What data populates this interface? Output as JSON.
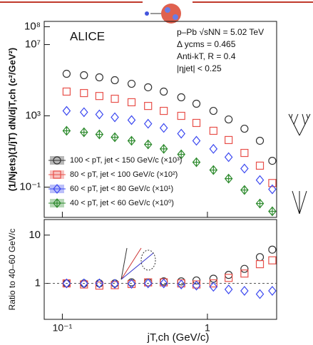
{
  "chart_data": [
    {
      "type": "scatter",
      "log_x": true,
      "log_y": true,
      "title": "ALICE",
      "annotations": [
        "p–Pb √sNN = 5.02 TeV",
        "Δ ycms = 0.465",
        "Anti-kT, R = 0.4",
        "|ηjet| < 0.25"
      ],
      "y_label": "(1/Njets)(1/jT) dN/djT,ch (c²/GeV²)",
      "x": [
        0.107,
        0.141,
        0.18,
        0.23,
        0.3,
        0.39,
        0.5,
        0.66,
        0.84,
        1.1,
        1.4,
        1.8,
        2.3,
        2.8
      ],
      "xlim": [
        0.075,
        3.0
      ],
      "ylim": [
        0.002,
        200000000
      ],
      "yticks": [
        {
          "value": 100000000,
          "label": "10⁸"
        },
        {
          "value": 10000000,
          "label": "10⁷"
        },
        {
          "value": 1000,
          "label": "10³"
        },
        {
          "value": 0.1,
          "label": "10⁻¹"
        }
      ],
      "legend": "lower left",
      "series": [
        {
          "name": "100 < pT, jet < 150 GeV/c (×10³)",
          "color": "#333333",
          "marker": "circle",
          "values": [
            229000,
            191000,
            145000,
            100000,
            63000,
            40000,
            23000,
            11000,
            4800,
            1900,
            630,
            190,
            40,
            3
          ]
        },
        {
          "name": "80 < pT, jet < 100 GeV/c (×10²)",
          "color": "#e8504a",
          "marker": "square",
          "values": [
            23000,
            19000,
            13000,
            9100,
            5800,
            3600,
            1900,
            1000,
            400,
            145,
            44,
            8.3,
            1.6,
            0.17
          ]
        },
        {
          "name": "60 < pT, jet < 80 GeV/c (×10¹)",
          "color": "#3b48f0",
          "marker": "diamond",
          "values": [
            1900,
            1600,
            1200,
            830,
            580,
            360,
            210,
            100,
            40,
            14,
            4.8,
            1.1,
            0.25,
            0.076
          ]
        },
        {
          "name": "40 < pT, jet < 60 GeV/c (×10⁰)",
          "color": "#2e8b2e",
          "marker": "cross",
          "values": [
            145,
            120,
            91,
            63,
            40,
            25,
            14,
            6.9,
            2.5,
            0.91,
            0.3,
            0.069,
            0.012,
            0.0044
          ]
        }
      ]
    },
    {
      "type": "scatter",
      "log_x": true,
      "log_y": true,
      "y_label": "Ratio to 40–60 GeV/c",
      "x_label": "jT,ch (GeV/c)",
      "x": [
        0.107,
        0.141,
        0.18,
        0.23,
        0.3,
        0.39,
        0.5,
        0.66,
        0.84,
        1.1,
        1.4,
        1.8,
        2.3,
        2.8
      ],
      "xlim": [
        0.075,
        3.0
      ],
      "xticks": [
        {
          "value": 0.1,
          "label": "10⁻¹"
        },
        1
      ],
      "ylim": [
        0.18,
        21
      ],
      "yticks": [
        1,
        10
      ],
      "series": [
        {
          "color": "#333333",
          "marker": "circle",
          "values": [
            1.0,
            1.0,
            1.0,
            1.0,
            1.05,
            1.05,
            1.1,
            1.1,
            1.15,
            1.25,
            1.5,
            2,
            3.5,
            5
          ]
        },
        {
          "color": "#e8504a",
          "marker": "square",
          "values": [
            1.0,
            0.95,
            0.9,
            0.92,
            0.97,
            1.05,
            1.05,
            1.0,
            0.95,
            1.0,
            1.3,
            1.6,
            2.5,
            3
          ]
        },
        {
          "color": "#3b48f0",
          "marker": "diamond",
          "values": [
            1.0,
            1.0,
            1.0,
            0.98,
            0.98,
            1.0,
            1.0,
            0.95,
            0.9,
            0.85,
            0.75,
            0.7,
            0.6,
            0.7
          ]
        }
      ]
    }
  ]
}
